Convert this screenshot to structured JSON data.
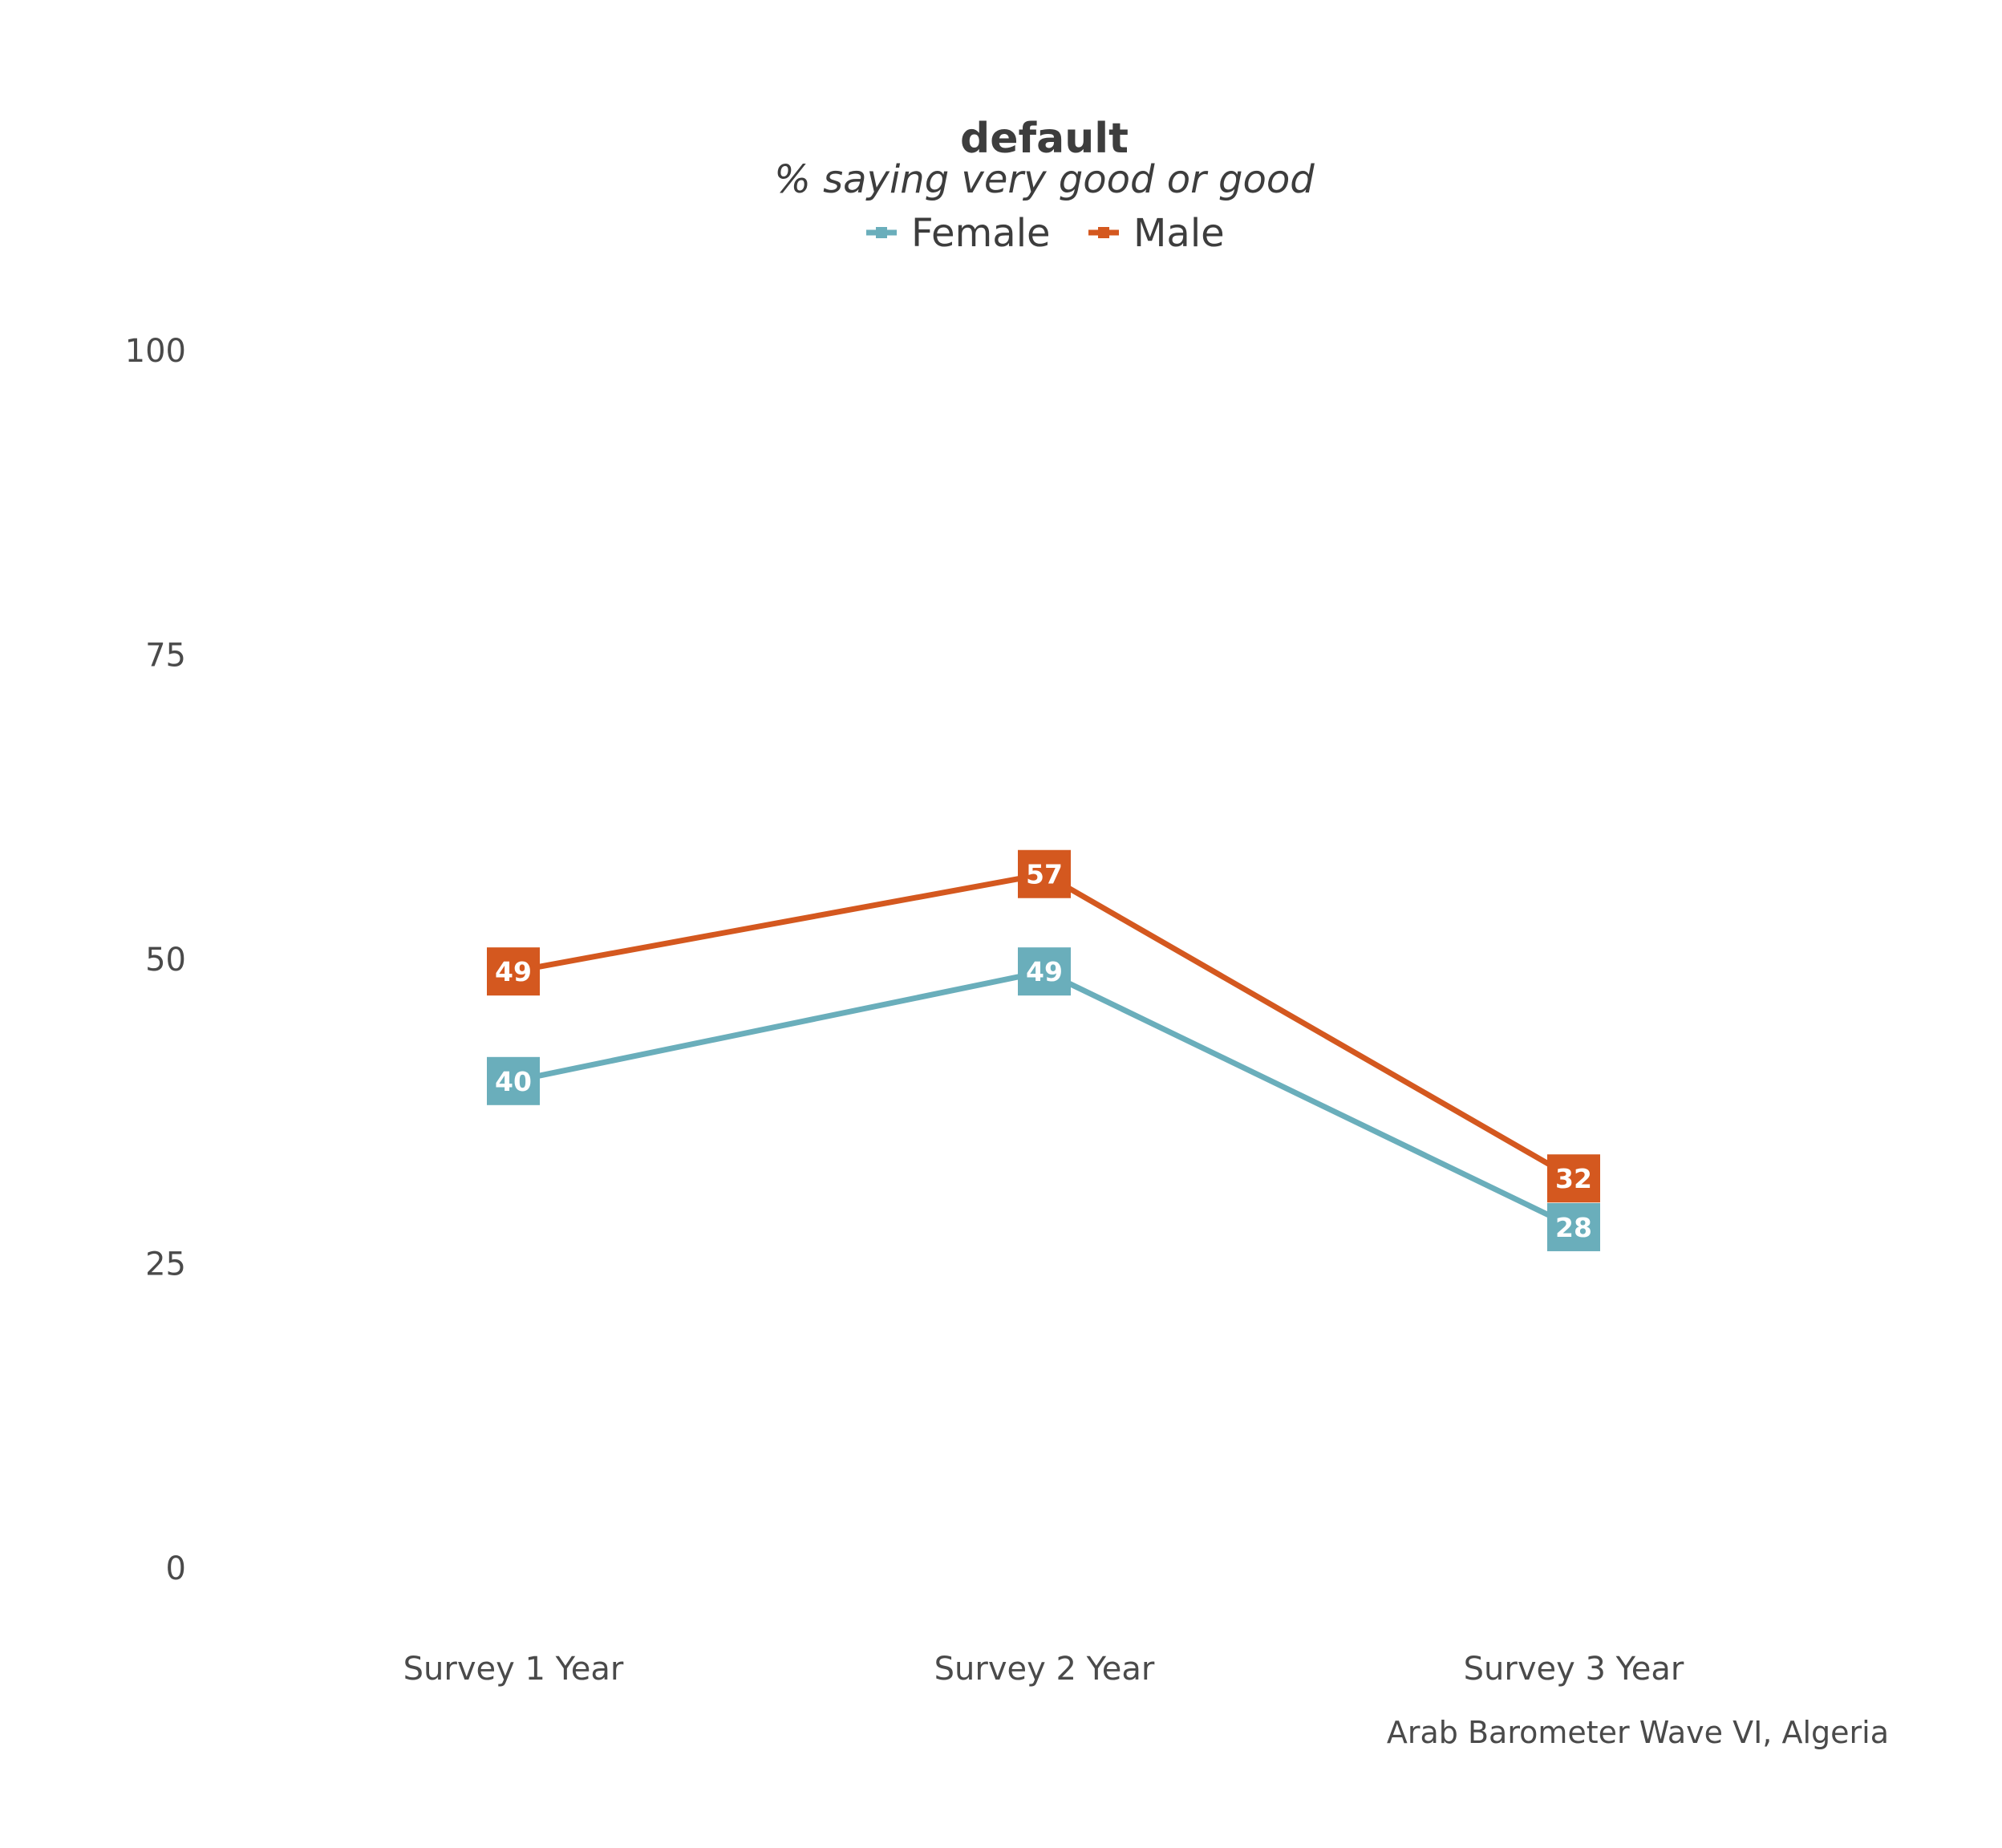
{
  "chart_data": {
    "type": "line",
    "title": "default",
    "subtitle": "% saying very good or good",
    "caption": "Arab Barometer Wave VI, Algeria",
    "categories": [
      "Survey 1 Year",
      "Survey 2 Year",
      "Survey 3 Year"
    ],
    "yticks": [
      "0",
      "25",
      "50",
      "75",
      "100"
    ],
    "ylim": [
      0,
      100
    ],
    "grid": false,
    "legend_position": "top",
    "series": [
      {
        "name": "Female",
        "color": "#6aaebb",
        "values": [
          40,
          49,
          28
        ],
        "labels": [
          "40",
          "49",
          "28"
        ]
      },
      {
        "name": "Male",
        "color": "#d4581f",
        "values": [
          49,
          57,
          32
        ],
        "labels": [
          "49",
          "57",
          "32"
        ]
      }
    ]
  }
}
